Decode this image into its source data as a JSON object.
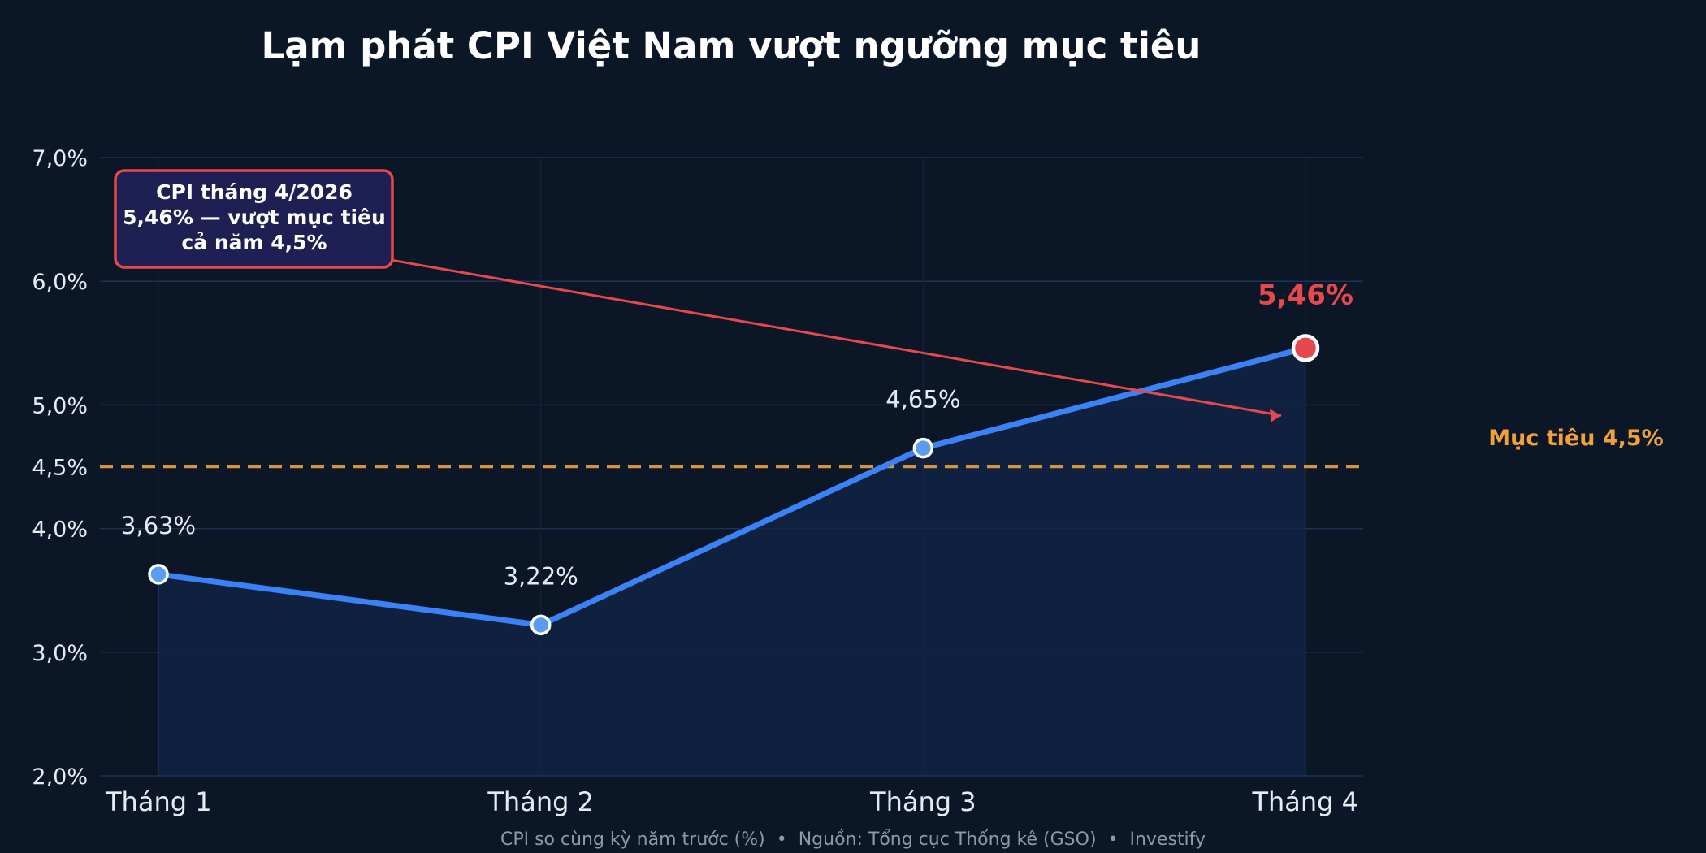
{
  "chart_data": {
    "type": "line",
    "title": "Lạm phát CPI Việt Nam vượt ngưỡng mục tiêu",
    "categories": [
      "Tháng 1",
      "Tháng 2",
      "Tháng 3",
      "Tháng 4"
    ],
    "values": [
      3.63,
      3.22,
      4.65,
      5.46
    ],
    "data_labels": [
      "3,63%",
      "3,22%",
      "4,65%",
      "5,46%"
    ],
    "highlight_index": 3,
    "ylim": [
      2.0,
      7.0
    ],
    "yticks": [
      2.0,
      3.0,
      4.0,
      4.5,
      5.0,
      6.0,
      7.0
    ],
    "ytick_labels": [
      "2,0%",
      "3,0%",
      "4,0%",
      "4,5%",
      "5,0%",
      "6,0%",
      "7,0%"
    ],
    "grid": true,
    "target": {
      "value": 4.5,
      "label": "Mục tiêu 4,5%"
    },
    "annotation": {
      "lines": [
        "CPI tháng 4/2026",
        "5,46% — vượt mục tiêu",
        "cả năm 4,5%"
      ],
      "points_to_index": 3
    },
    "footer": "CPI so cùng kỳ năm trước (%)  •  Nguồn: Tổng cục Thống kê (GSO)  •  Investify",
    "colors": {
      "background": "#0b1626",
      "line": "#3b82f6",
      "marker": "#5b9bf0",
      "highlight": "#e5484d",
      "target": "#f0a13a",
      "grid": "#1f3252",
      "area": "#13254a",
      "callout_bg": "#1e1f52"
    }
  }
}
